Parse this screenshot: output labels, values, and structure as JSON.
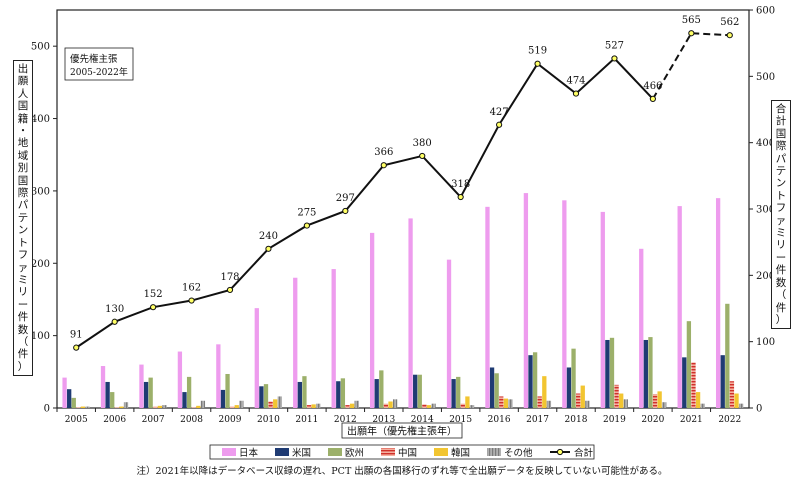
{
  "chart_data": {
    "type": "bar",
    "subtype": "grouped bar + line (secondary axis)",
    "annotation": [
      "優先権主張",
      "2005-2022年"
    ],
    "xlabel": "出願年（優先権主張年）",
    "ylabel_left": "出願人国籍・地域別国際パテントファミリー件数（件）",
    "ylabel_right": "合計国際パテントファミリー件数（件）",
    "ylim_left": [
      0,
      550
    ],
    "ylim_right": [
      0,
      600
    ],
    "yticks_left": [
      0,
      100,
      200,
      300,
      400,
      500
    ],
    "yticks_right": [
      0,
      100,
      200,
      300,
      400,
      500,
      600
    ],
    "grid": false,
    "legend_position": "bottom",
    "categories": [
      "2005",
      "2006",
      "2007",
      "2008",
      "2009",
      "2010",
      "2011",
      "2012",
      "2013",
      "2014",
      "2015",
      "2016",
      "2017",
      "2018",
      "2019",
      "2020",
      "2021",
      "2022"
    ],
    "series": [
      {
        "name": "日本",
        "color": "#ee9cee",
        "values": [
          42,
          58,
          60,
          78,
          88,
          138,
          180,
          192,
          242,
          262,
          205,
          278,
          297,
          287,
          271,
          220,
          279,
          290
        ]
      },
      {
        "name": "米国",
        "color": "#1f3b73",
        "values": [
          26,
          36,
          36,
          22,
          25,
          30,
          36,
          37,
          40,
          46,
          40,
          56,
          73,
          56,
          94,
          94,
          70,
          73
        ]
      },
      {
        "name": "欧州",
        "color": "#9cb06a",
        "values": [
          14,
          22,
          42,
          43,
          47,
          33,
          44,
          41,
          52,
          46,
          43,
          48,
          77,
          82,
          97,
          98,
          120,
          144
        ]
      },
      {
        "name": "中国",
        "color": "#d23a3a",
        "values": [
          1,
          1,
          2,
          1,
          2,
          9,
          4,
          4,
          6,
          5,
          6,
          16,
          16,
          20,
          32,
          19,
          63,
          37
        ]
      },
      {
        "name": "韓国",
        "color": "#f2c531",
        "values": [
          2,
          2,
          3,
          3,
          4,
          12,
          5,
          6,
          9,
          4,
          16,
          13,
          44,
          31,
          20,
          23,
          22,
          20
        ]
      },
      {
        "name": "その他",
        "color": "#9e9e9e",
        "values": [
          2,
          8,
          4,
          10,
          10,
          16,
          6,
          10,
          12,
          6,
          4,
          12,
          10,
          10,
          12,
          8,
          6,
          6
        ]
      }
    ],
    "line_series": {
      "name": "合計",
      "axis": "right",
      "values": [
        91,
        130,
        152,
        162,
        178,
        240,
        275,
        297,
        366,
        380,
        318,
        427,
        519,
        474,
        527,
        466,
        565,
        562
      ],
      "dashed_from_index": 15
    }
  },
  "note": "注）2021年以降はデータベース収録の遅れ、PCT 出願の各国移行のずれ等で全出願データを反映していない可能性がある。"
}
